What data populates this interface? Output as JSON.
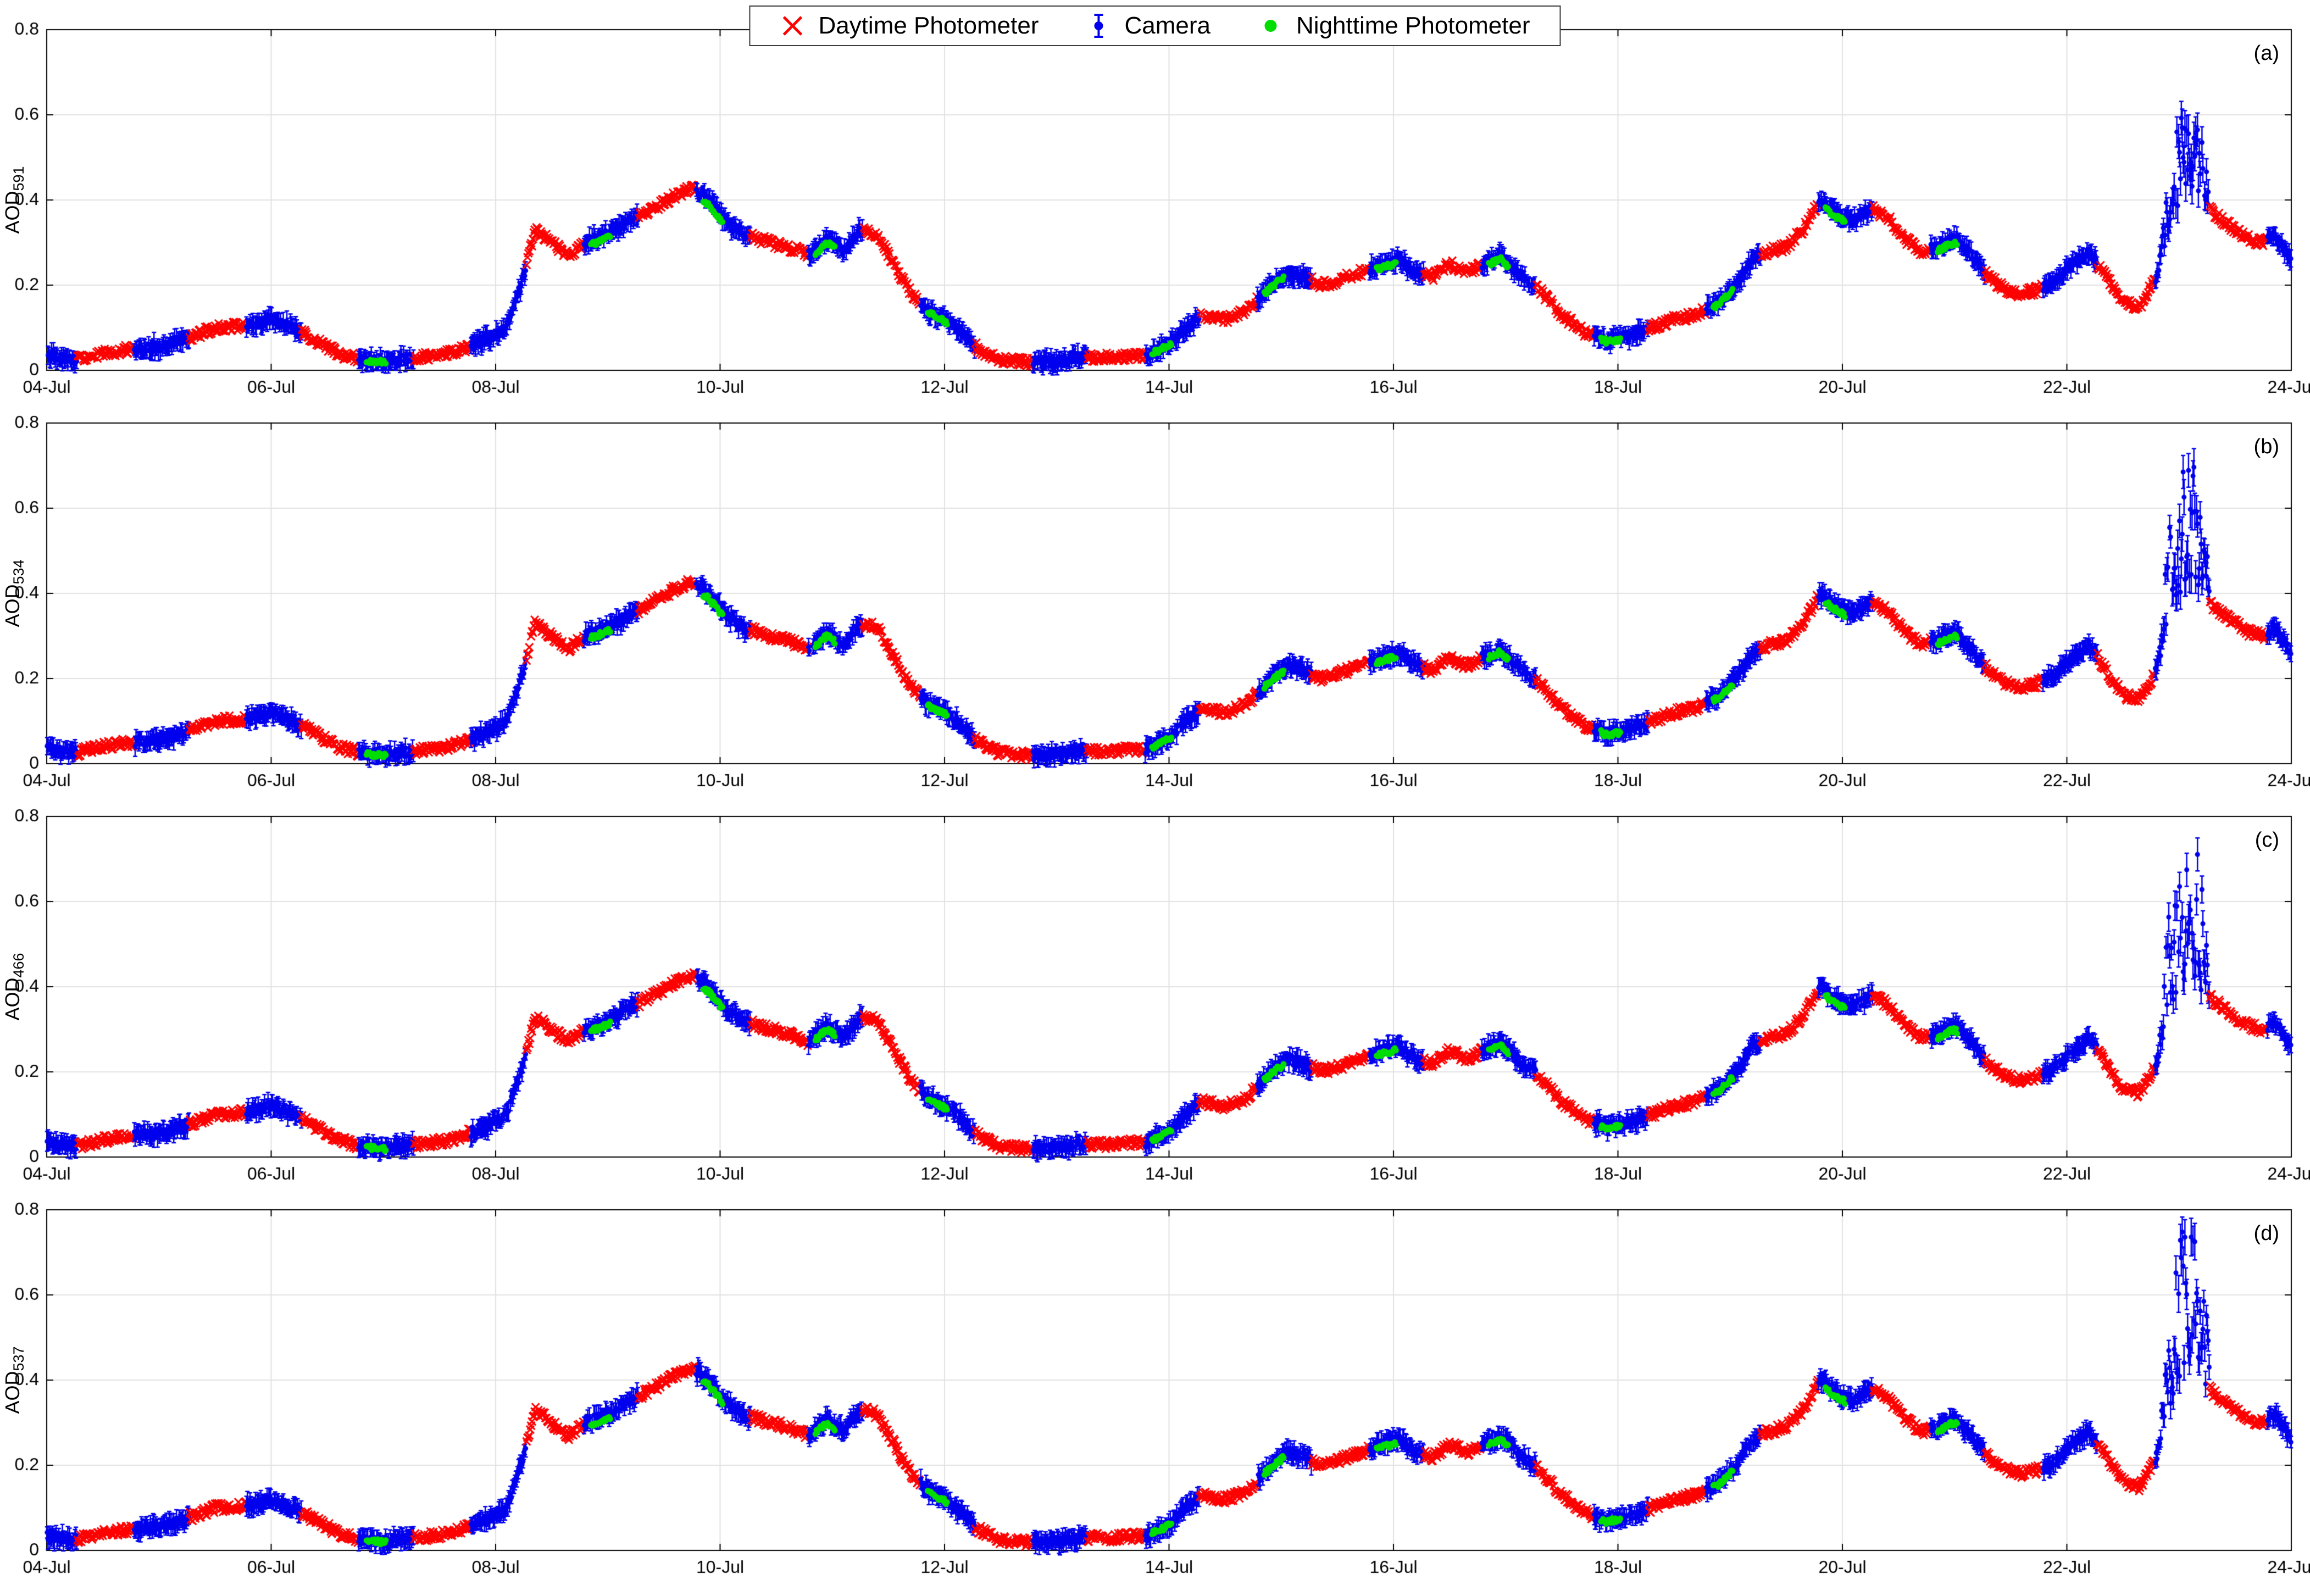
{
  "legend": {
    "items": [
      {
        "label": "Daytime Photometer"
      },
      {
        "label": "Camera"
      },
      {
        "label": "Nighttime Photometer"
      }
    ]
  },
  "chart_data": {
    "type": "scatter",
    "title": "",
    "xlabel": "",
    "grid": true,
    "legend_position": "top-center",
    "xlim": [
      4,
      24
    ],
    "ylim": [
      0,
      0.8
    ],
    "x_ticks": [
      {
        "day": 4,
        "label": "04-Jul"
      },
      {
        "day": 6,
        "label": "06-Jul"
      },
      {
        "day": 8,
        "label": "08-Jul"
      },
      {
        "day": 10,
        "label": "10-Jul"
      },
      {
        "day": 12,
        "label": "12-Jul"
      },
      {
        "day": 14,
        "label": "14-Jul"
      },
      {
        "day": 16,
        "label": "16-Jul"
      },
      {
        "day": 18,
        "label": "18-Jul"
      },
      {
        "day": 20,
        "label": "20-Jul"
      },
      {
        "day": 22,
        "label": "22-Jul"
      },
      {
        "day": 24,
        "label": "24-Jul"
      }
    ],
    "y_ticks": [
      {
        "v": 0,
        "label": "0"
      },
      {
        "v": 0.2,
        "label": "0.2"
      },
      {
        "v": 0.4,
        "label": "0.4"
      },
      {
        "v": 0.6,
        "label": "0.6"
      },
      {
        "v": 0.8,
        "label": "0.8"
      }
    ],
    "series": [
      {
        "name": "Daytime Photometer",
        "marker": "x",
        "color": "#ff0000",
        "when": "daytime"
      },
      {
        "name": "Camera",
        "marker": "point-errorbar",
        "color": "#0000ee",
        "when": "nighttime"
      },
      {
        "name": "Nighttime Photometer",
        "marker": "point",
        "color": "#00dd00",
        "when": "nighttime-partial"
      }
    ],
    "panels": [
      {
        "tag": "(a)",
        "ylabel_base": "AOD",
        "ylabel_sub": "591",
        "spike_peak": 0.62
      },
      {
        "tag": "(b)",
        "ylabel_base": "AOD",
        "ylabel_sub": "534",
        "spike_peak": 0.72
      },
      {
        "tag": "(c)",
        "ylabel_base": "AOD",
        "ylabel_sub": "466",
        "spike_peak": 0.79
      },
      {
        "tag": "(d)",
        "ylabel_base": "AOD",
        "ylabel_sub": "537",
        "spike_peak": 0.76
      }
    ],
    "envelope_day_aod": [
      [
        4.0,
        0.035
      ],
      [
        4.25,
        0.025
      ],
      [
        4.5,
        0.04
      ],
      [
        4.75,
        0.05
      ],
      [
        5.0,
        0.055
      ],
      [
        5.2,
        0.07
      ],
      [
        5.5,
        0.1
      ],
      [
        5.8,
        0.105
      ],
      [
        6.0,
        0.12
      ],
      [
        6.2,
        0.1
      ],
      [
        6.4,
        0.07
      ],
      [
        6.6,
        0.04
      ],
      [
        6.8,
        0.025
      ],
      [
        7.0,
        0.02
      ],
      [
        7.3,
        0.03
      ],
      [
        7.6,
        0.04
      ],
      [
        7.9,
        0.07
      ],
      [
        8.1,
        0.1
      ],
      [
        8.25,
        0.22
      ],
      [
        8.35,
        0.33
      ],
      [
        8.5,
        0.3
      ],
      [
        8.65,
        0.27
      ],
      [
        8.8,
        0.3
      ],
      [
        9.0,
        0.32
      ],
      [
        9.2,
        0.35
      ],
      [
        9.4,
        0.38
      ],
      [
        9.6,
        0.41
      ],
      [
        9.75,
        0.43
      ],
      [
        9.9,
        0.4
      ],
      [
        10.05,
        0.35
      ],
      [
        10.2,
        0.32
      ],
      [
        10.45,
        0.3
      ],
      [
        10.6,
        0.29
      ],
      [
        10.8,
        0.27
      ],
      [
        10.95,
        0.31
      ],
      [
        11.1,
        0.28
      ],
      [
        11.25,
        0.33
      ],
      [
        11.4,
        0.32
      ],
      [
        11.55,
        0.25
      ],
      [
        11.7,
        0.18
      ],
      [
        11.85,
        0.14
      ],
      [
        12.0,
        0.12
      ],
      [
        12.15,
        0.09
      ],
      [
        12.3,
        0.05
      ],
      [
        12.5,
        0.025
      ],
      [
        12.7,
        0.02
      ],
      [
        13.0,
        0.02
      ],
      [
        13.2,
        0.03
      ],
      [
        13.5,
        0.03
      ],
      [
        13.8,
        0.035
      ],
      [
        14.0,
        0.06
      ],
      [
        14.15,
        0.1
      ],
      [
        14.3,
        0.13
      ],
      [
        14.5,
        0.12
      ],
      [
        14.7,
        0.14
      ],
      [
        14.9,
        0.2
      ],
      [
        15.05,
        0.23
      ],
      [
        15.2,
        0.22
      ],
      [
        15.35,
        0.2
      ],
      [
        15.5,
        0.21
      ],
      [
        15.7,
        0.23
      ],
      [
        15.9,
        0.25
      ],
      [
        16.05,
        0.26
      ],
      [
        16.2,
        0.23
      ],
      [
        16.35,
        0.22
      ],
      [
        16.5,
        0.25
      ],
      [
        16.65,
        0.23
      ],
      [
        16.8,
        0.25
      ],
      [
        16.95,
        0.27
      ],
      [
        17.1,
        0.23
      ],
      [
        17.3,
        0.19
      ],
      [
        17.5,
        0.13
      ],
      [
        17.7,
        0.09
      ],
      [
        17.9,
        0.07
      ],
      [
        18.1,
        0.08
      ],
      [
        18.3,
        0.1
      ],
      [
        18.5,
        0.12
      ],
      [
        18.7,
        0.13
      ],
      [
        18.9,
        0.16
      ],
      [
        19.05,
        0.2
      ],
      [
        19.2,
        0.26
      ],
      [
        19.35,
        0.28
      ],
      [
        19.5,
        0.29
      ],
      [
        19.65,
        0.33
      ],
      [
        19.8,
        0.4
      ],
      [
        19.95,
        0.37
      ],
      [
        20.1,
        0.35
      ],
      [
        20.25,
        0.38
      ],
      [
        20.4,
        0.36
      ],
      [
        20.55,
        0.31
      ],
      [
        20.7,
        0.28
      ],
      [
        20.85,
        0.29
      ],
      [
        21.0,
        0.31
      ],
      [
        21.15,
        0.27
      ],
      [
        21.3,
        0.22
      ],
      [
        21.45,
        0.19
      ],
      [
        21.6,
        0.18
      ],
      [
        21.75,
        0.19
      ],
      [
        21.9,
        0.21
      ],
      [
        22.05,
        0.25
      ],
      [
        22.2,
        0.28
      ],
      [
        22.35,
        0.22
      ],
      [
        22.5,
        0.16
      ],
      [
        22.65,
        0.15
      ],
      [
        22.8,
        0.22
      ],
      [
        22.9,
        0.33
      ],
      [
        23.0,
        0.4
      ],
      [
        23.1,
        0.44
      ],
      [
        23.2,
        0.4
      ],
      [
        23.3,
        0.37
      ],
      [
        23.45,
        0.34
      ],
      [
        23.6,
        0.31
      ],
      [
        23.75,
        0.3
      ],
      [
        23.85,
        0.32
      ],
      [
        24.0,
        0.26
      ]
    ],
    "green_night_centers": [
      6.95,
      8.95,
      9.95,
      10.95,
      11.95,
      13.95,
      14.95,
      15.95,
      16.95,
      17.95,
      18.95,
      19.95,
      20.95
    ],
    "day_fraction_window": [
      0.27,
      0.78
    ],
    "colors": {
      "grid": "#e2e2e2",
      "axis": "#000000",
      "background": "#ffffff"
    }
  }
}
